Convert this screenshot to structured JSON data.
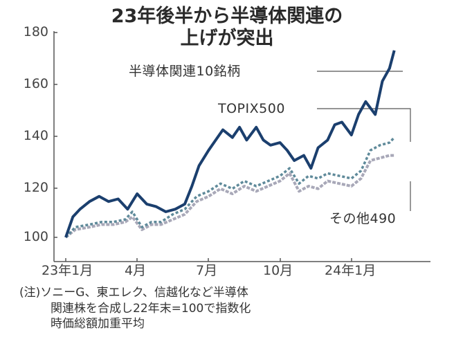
{
  "title": {
    "line1": "23年後半から半導体関連の",
    "line2": "上げが突出"
  },
  "y_ticks": [
    "180",
    "160",
    "140",
    "120",
    "100"
  ],
  "x_ticks": [
    "23年1月",
    "4月",
    "7月",
    "10月",
    "24年1月"
  ],
  "labels": {
    "semis": "半導体関連10銘柄",
    "topix500": "TOPIX500",
    "others": "その他490"
  },
  "note": {
    "line1": "(注)ソニーG、東エレク、信越化など半導体",
    "line2": "関連株を合成し22年末=100で指数化",
    "line3": "時価総額加重平均"
  },
  "colors": {
    "semis": "#1b3f6e",
    "topix500": "#5f8a9a",
    "others": "#a8a8b8",
    "axis": "#555555"
  },
  "chart_data": {
    "type": "line",
    "title": "23年後半から半導体関連の上げが突出",
    "xlabel": "",
    "ylabel": "",
    "ylim": [
      100,
      180
    ],
    "yticks": [
      100,
      120,
      140,
      160,
      180
    ],
    "x_tick_labels": [
      "23年1月",
      "4月",
      "7月",
      "10月",
      "24年1月"
    ],
    "x_unit": "months since 2023-01 (0 = 23年1月, 12 = 24年1月)",
    "grid": false,
    "legend": "inline labels with leader lines",
    "series": [
      {
        "name": "半導体関連10銘柄",
        "x": [
          0,
          0.3,
          0.6,
          1.0,
          1.4,
          1.8,
          2.2,
          2.6,
          3.0,
          3.4,
          3.8,
          4.2,
          4.6,
          5.0,
          5.3,
          5.6,
          6.0,
          6.3,
          6.6,
          7.0,
          7.3,
          7.6,
          8.0,
          8.3,
          8.6,
          9.0,
          9.3,
          9.6,
          10.0,
          10.3,
          10.6,
          11.0,
          11.3,
          11.6,
          12.0,
          12.3,
          12.6,
          13.0,
          13.3,
          13.6,
          13.8
        ],
        "values": [
          100,
          108,
          111,
          114,
          116,
          114,
          115,
          111,
          117,
          113,
          112,
          110,
          111,
          113,
          120,
          128,
          134,
          138,
          142,
          139,
          143,
          138,
          143,
          138,
          136,
          137,
          134,
          130,
          132,
          127,
          135,
          138,
          144,
          145,
          140,
          148,
          153,
          148,
          161,
          166,
          173
        ]
      },
      {
        "name": "TOPIX500",
        "x": [
          0,
          0.4,
          1.0,
          1.5,
          2.0,
          2.5,
          2.8,
          3.2,
          3.6,
          4.0,
          4.5,
          5.0,
          5.5,
          6.0,
          6.5,
          7.0,
          7.5,
          8.0,
          8.5,
          9.0,
          9.4,
          9.8,
          10.2,
          10.6,
          11.0,
          11.5,
          12.0,
          12.4,
          12.8,
          13.2,
          13.6,
          13.8
        ],
        "values": [
          100,
          104,
          105,
          106,
          106,
          107,
          110,
          104,
          106,
          106,
          109,
          111,
          116,
          118,
          121,
          119,
          122,
          120,
          122,
          124,
          127,
          121,
          124,
          123,
          125,
          124,
          123,
          126,
          134,
          136,
          137,
          139
        ]
      },
      {
        "name": "その他490",
        "x": [
          0,
          0.4,
          1.0,
          1.5,
          2.0,
          2.5,
          2.8,
          3.2,
          3.6,
          4.0,
          4.5,
          5.0,
          5.5,
          6.0,
          6.5,
          7.0,
          7.5,
          8.0,
          8.5,
          9.0,
          9.4,
          9.8,
          10.2,
          10.6,
          11.0,
          11.5,
          12.0,
          12.4,
          12.8,
          13.2,
          13.6,
          13.8
        ],
        "values": [
          100,
          103,
          104,
          105,
          105,
          106,
          108,
          103,
          105,
          105,
          107,
          109,
          114,
          116,
          119,
          117,
          120,
          118,
          120,
          122,
          125,
          118,
          120,
          119,
          122,
          121,
          120,
          123,
          130,
          131,
          132,
          132
        ]
      }
    ]
  }
}
